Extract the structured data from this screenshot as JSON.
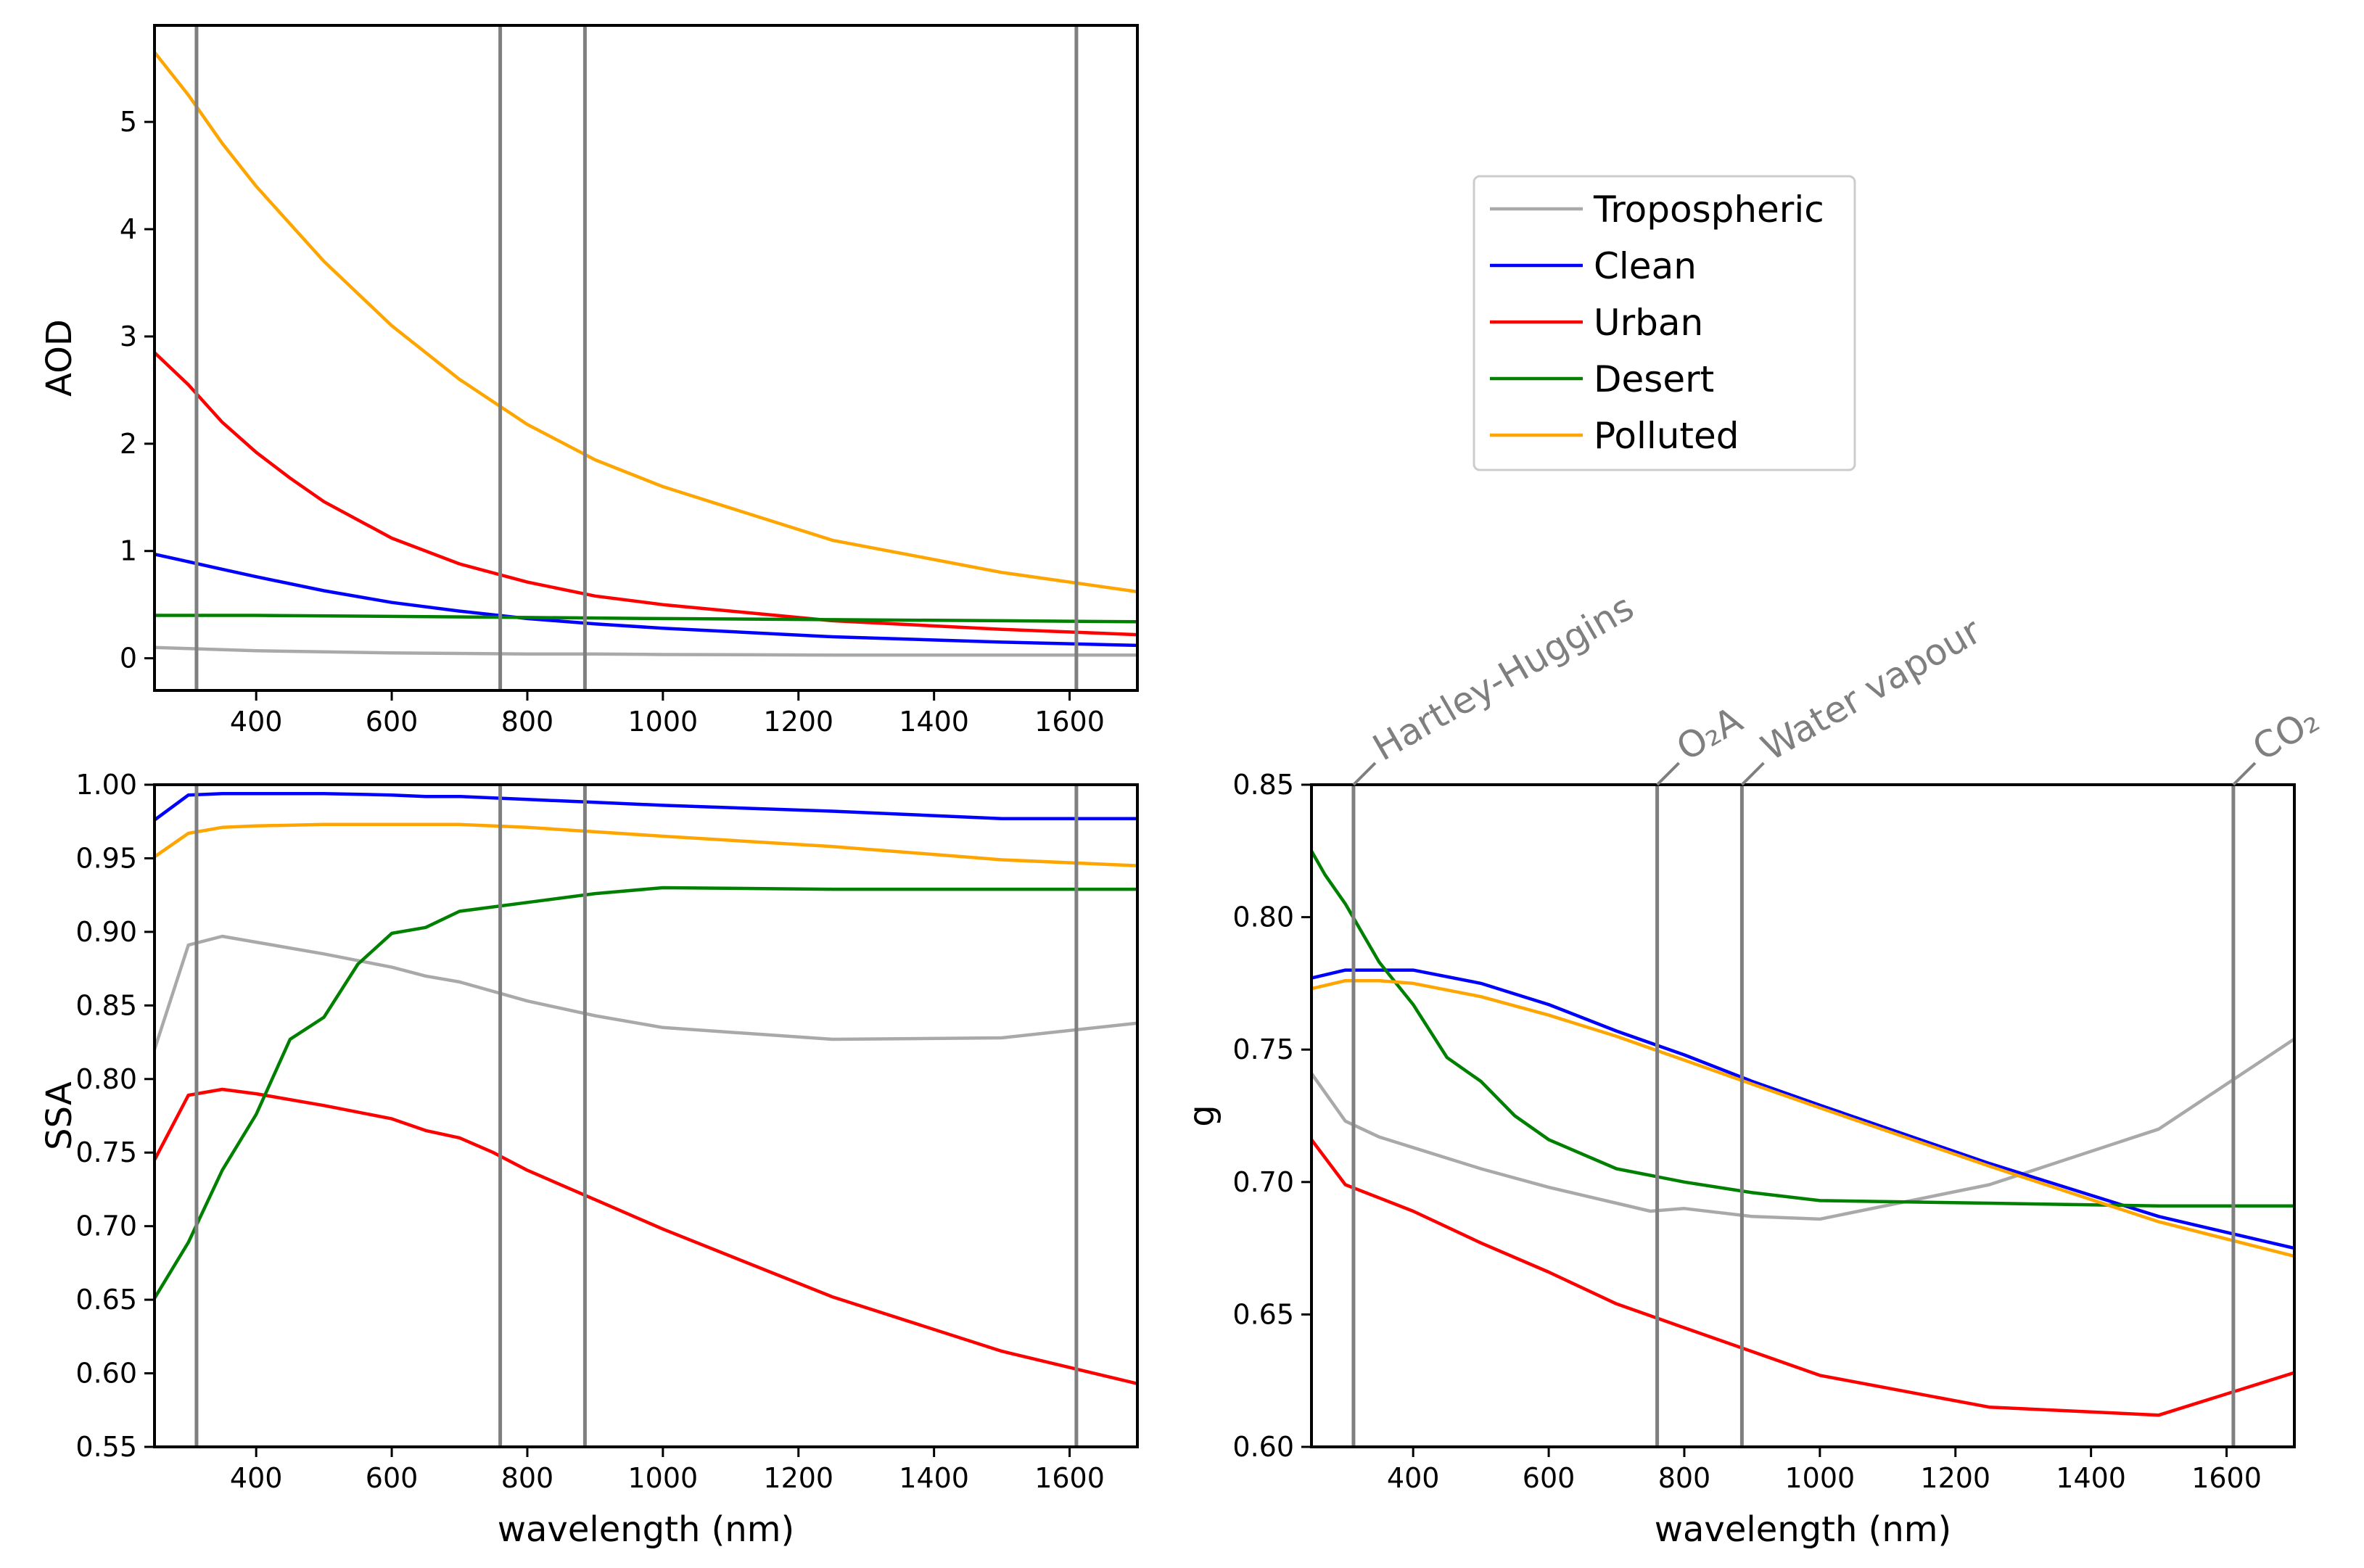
{
  "colors": {
    "Tropospheric": "#a9a9a9",
    "Clean": "#0000ff",
    "Urban": "#ff0000",
    "Desert": "#008000",
    "Polluted": "#ffa500",
    "band_line": "#7f7f7f"
  },
  "legend": {
    "placement": "upper-right region (empty fourth panel)",
    "items": [
      "Tropospheric",
      "Clean",
      "Urban",
      "Desert",
      "Polluted"
    ]
  },
  "absorption_bands": {
    "wavelengths_nm": [
      312,
      760,
      885,
      1610
    ],
    "labels": [
      "Hartley-Huggins",
      "O₂A",
      "Water vapour",
      "CO₂"
    ]
  },
  "chart_data": [
    {
      "type": "line",
      "panel": "aod",
      "xlabel": "",
      "ylabel": "AOD",
      "xlim": [
        250,
        1700
      ],
      "ylim": [
        -0.3,
        5.9
      ],
      "xticks": [
        400,
        600,
        800,
        1000,
        1200,
        1400,
        1600
      ],
      "yticks": [
        0,
        1,
        2,
        3,
        4,
        5
      ],
      "ytick_labels": [
        "0",
        "1",
        "2",
        "3",
        "4",
        "5"
      ],
      "series": [
        {
          "name": "Tropospheric",
          "x": [
            250,
            300,
            350,
            400,
            500,
            600,
            700,
            800,
            900,
            1000,
            1250,
            1500,
            1700
          ],
          "y": [
            0.1,
            0.09,
            0.08,
            0.07,
            0.06,
            0.05,
            0.045,
            0.04,
            0.04,
            0.035,
            0.03,
            0.03,
            0.03
          ]
        },
        {
          "name": "Clean",
          "x": [
            250,
            300,
            350,
            400,
            500,
            600,
            700,
            800,
            900,
            1000,
            1250,
            1500,
            1700
          ],
          "y": [
            0.97,
            0.9,
            0.83,
            0.76,
            0.63,
            0.52,
            0.44,
            0.37,
            0.32,
            0.28,
            0.2,
            0.15,
            0.12
          ]
        },
        {
          "name": "Urban",
          "x": [
            250,
            300,
            350,
            400,
            450,
            500,
            600,
            700,
            800,
            900,
            1000,
            1250,
            1500,
            1700
          ],
          "y": [
            2.85,
            2.55,
            2.2,
            1.92,
            1.68,
            1.46,
            1.12,
            0.88,
            0.71,
            0.58,
            0.5,
            0.35,
            0.27,
            0.22
          ]
        },
        {
          "name": "Desert",
          "x": [
            250,
            400,
            600,
            800,
            1000,
            1250,
            1500,
            1700
          ],
          "y": [
            0.4,
            0.4,
            0.39,
            0.38,
            0.37,
            0.36,
            0.35,
            0.34
          ]
        },
        {
          "name": "Polluted",
          "x": [
            250,
            300,
            350,
            400,
            500,
            600,
            700,
            800,
            900,
            1000,
            1250,
            1500,
            1700
          ],
          "y": [
            5.65,
            5.25,
            4.8,
            4.4,
            3.7,
            3.1,
            2.6,
            2.18,
            1.85,
            1.6,
            1.1,
            0.8,
            0.62
          ]
        }
      ]
    },
    {
      "type": "line",
      "panel": "ssa",
      "xlabel": "wavelength (nm)",
      "ylabel": "SSA",
      "xlim": [
        250,
        1700
      ],
      "ylim": [
        0.55,
        1.0
      ],
      "xticks": [
        400,
        600,
        800,
        1000,
        1200,
        1400,
        1600
      ],
      "yticks": [
        0.55,
        0.6,
        0.65,
        0.7,
        0.75,
        0.8,
        0.85,
        0.9,
        0.95,
        1.0
      ],
      "ytick_labels": [
        "0.55",
        "0.60",
        "0.65",
        "0.70",
        "0.75",
        "0.80",
        "0.85",
        "0.90",
        "0.95",
        "1.00"
      ],
      "series": [
        {
          "name": "Tropospheric",
          "x": [
            250,
            300,
            350,
            400,
            500,
            600,
            650,
            700,
            800,
            900,
            1000,
            1250,
            1500,
            1700
          ],
          "y": [
            0.82,
            0.891,
            0.897,
            0.893,
            0.885,
            0.876,
            0.87,
            0.866,
            0.853,
            0.843,
            0.835,
            0.827,
            0.828,
            0.838
          ]
        },
        {
          "name": "Clean",
          "x": [
            250,
            300,
            350,
            400,
            500,
            600,
            650,
            700,
            800,
            900,
            1000,
            1250,
            1500,
            1700
          ],
          "y": [
            0.976,
            0.993,
            0.994,
            0.994,
            0.994,
            0.993,
            0.992,
            0.992,
            0.99,
            0.988,
            0.986,
            0.982,
            0.977,
            0.977
          ]
        },
        {
          "name": "Urban",
          "x": [
            250,
            300,
            350,
            400,
            500,
            600,
            650,
            700,
            750,
            800,
            900,
            1000,
            1250,
            1500,
            1700
          ],
          "y": [
            0.745,
            0.789,
            0.793,
            0.79,
            0.782,
            0.773,
            0.765,
            0.76,
            0.75,
            0.738,
            0.718,
            0.698,
            0.652,
            0.615,
            0.593
          ]
        },
        {
          "name": "Desert",
          "x": [
            250,
            300,
            350,
            400,
            450,
            500,
            550,
            600,
            650,
            700,
            800,
            900,
            1000,
            1250,
            1500,
            1700
          ],
          "y": [
            0.651,
            0.689,
            0.738,
            0.776,
            0.827,
            0.842,
            0.878,
            0.899,
            0.903,
            0.914,
            0.92,
            0.926,
            0.93,
            0.929,
            0.929,
            0.929
          ]
        },
        {
          "name": "Polluted",
          "x": [
            250,
            300,
            350,
            400,
            500,
            600,
            650,
            700,
            800,
            900,
            1000,
            1250,
            1500,
            1700
          ],
          "y": [
            0.951,
            0.967,
            0.971,
            0.972,
            0.973,
            0.973,
            0.973,
            0.973,
            0.971,
            0.968,
            0.965,
            0.958,
            0.949,
            0.945
          ]
        }
      ]
    },
    {
      "type": "line",
      "panel": "g",
      "xlabel": "wavelength (nm)",
      "ylabel": "g",
      "xlim": [
        250,
        1700
      ],
      "ylim": [
        0.6,
        0.85
      ],
      "xticks": [
        400,
        600,
        800,
        1000,
        1200,
        1400,
        1600
      ],
      "yticks": [
        0.6,
        0.65,
        0.7,
        0.75,
        0.8,
        0.85
      ],
      "ytick_labels": [
        "0.60",
        "0.65",
        "0.70",
        "0.75",
        "0.80",
        "0.85"
      ],
      "series": [
        {
          "name": "Tropospheric",
          "x": [
            250,
            300,
            350,
            400,
            500,
            600,
            700,
            750,
            800,
            900,
            1000,
            1250,
            1500,
            1700
          ],
          "y": [
            0.741,
            0.723,
            0.717,
            0.713,
            0.705,
            0.698,
            0.692,
            0.689,
            0.69,
            0.687,
            0.686,
            0.699,
            0.72,
            0.754
          ]
        },
        {
          "name": "Clean",
          "x": [
            250,
            300,
            350,
            400,
            500,
            600,
            700,
            800,
            900,
            1000,
            1250,
            1500,
            1700
          ],
          "y": [
            0.777,
            0.78,
            0.78,
            0.78,
            0.775,
            0.767,
            0.757,
            0.748,
            0.738,
            0.729,
            0.707,
            0.687,
            0.675
          ]
        },
        {
          "name": "Urban",
          "x": [
            250,
            300,
            350,
            400,
            500,
            600,
            700,
            800,
            900,
            1000,
            1250,
            1500,
            1700
          ],
          "y": [
            0.716,
            0.699,
            0.694,
            0.689,
            0.677,
            0.666,
            0.654,
            0.645,
            0.636,
            0.627,
            0.615,
            0.612,
            0.628
          ]
        },
        {
          "name": "Desert",
          "x": [
            250,
            270,
            300,
            350,
            400,
            450,
            500,
            550,
            600,
            700,
            800,
            900,
            1000,
            1250,
            1500,
            1700
          ],
          "y": [
            0.825,
            0.816,
            0.805,
            0.783,
            0.767,
            0.747,
            0.738,
            0.725,
            0.716,
            0.705,
            0.7,
            0.696,
            0.693,
            0.692,
            0.691,
            0.691
          ]
        },
        {
          "name": "Polluted",
          "x": [
            250,
            300,
            350,
            400,
            500,
            600,
            700,
            800,
            900,
            1000,
            1250,
            1500,
            1700
          ],
          "y": [
            0.773,
            0.776,
            0.776,
            0.775,
            0.77,
            0.763,
            0.755,
            0.746,
            0.737,
            0.728,
            0.706,
            0.685,
            0.672
          ]
        }
      ]
    }
  ]
}
